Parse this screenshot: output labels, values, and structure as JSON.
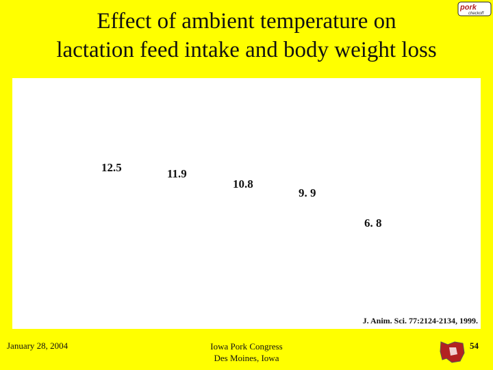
{
  "slide": {
    "title_line1": "Effect of ambient temperature on",
    "title_line2": "lactation feed intake and body weight loss",
    "logo_text": "pork checkoff",
    "source": "J. Anim. Sci. 77:2124-2134, 1999.",
    "footer": {
      "date": "January 28, 2004",
      "event_line1": "Iowa Pork Congress",
      "event_line2": "Des Moines, Iowa",
      "page": "54"
    },
    "colors": {
      "background": "#ffff00",
      "panel": "#ffffff",
      "map": "#b22222"
    }
  },
  "chart_data": {
    "type": "bar",
    "title": "",
    "categories": [
      "",
      "",
      "",
      "",
      ""
    ],
    "values": [
      12.5,
      11.9,
      10.8,
      9.9,
      6.8
    ],
    "value_labels": [
      "12.5",
      "11.9",
      "10.8",
      "9. 9",
      "6. 8"
    ],
    "xlabel": "",
    "ylabel": "",
    "ylim": [
      0,
      20
    ],
    "grid": false,
    "legend": "none"
  }
}
